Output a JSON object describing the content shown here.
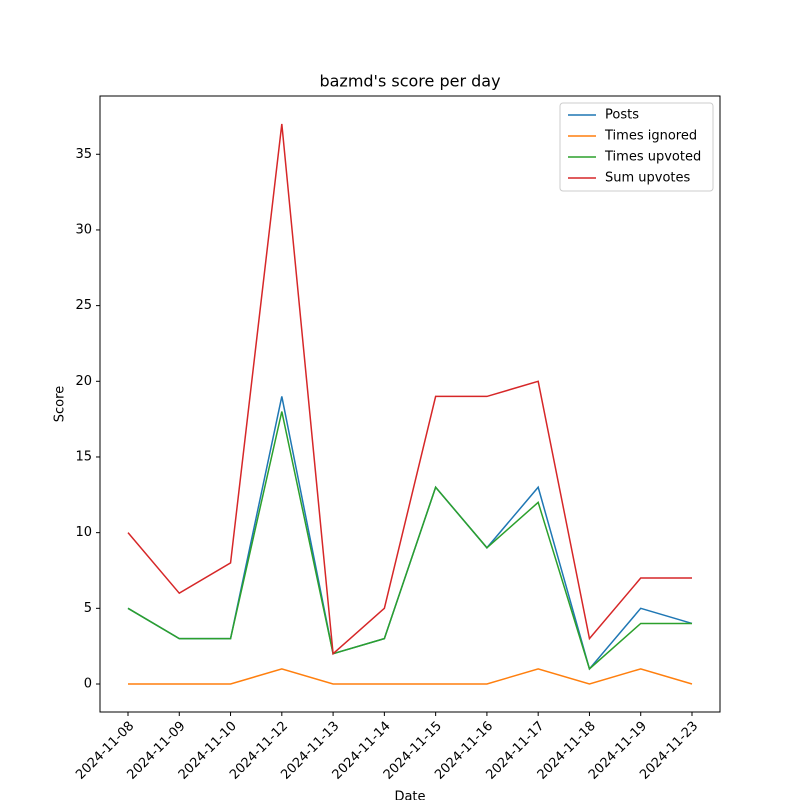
{
  "chart_data": {
    "type": "line",
    "title": "bazmd's score per day",
    "x_label": "Date",
    "y_label": "Score",
    "categories": [
      "2024-11-08",
      "2024-11-09",
      "2024-11-10",
      "2024-11-12",
      "2024-11-13",
      "2024-11-14",
      "2024-11-15",
      "2024-11-16",
      "2024-11-17",
      "2024-11-18",
      "2024-11-19",
      "2024-11-23"
    ],
    "series": [
      {
        "name": "Posts",
        "color": "#1f77b4",
        "values": [
          5,
          3,
          3,
          19,
          2,
          3,
          13,
          9,
          13,
          1,
          5,
          4
        ]
      },
      {
        "name": "Times ignored",
        "color": "#ff7f0e",
        "values": [
          0,
          0,
          0,
          1,
          0,
          0,
          0,
          0,
          1,
          0,
          1,
          0
        ]
      },
      {
        "name": "Times upvoted",
        "color": "#2ca02c",
        "values": [
          5,
          3,
          3,
          18,
          2,
          3,
          13,
          9,
          12,
          1,
          4,
          4
        ]
      },
      {
        "name": "Sum upvotes",
        "color": "#d62728",
        "values": [
          10,
          6,
          8,
          37,
          2,
          5,
          19,
          19,
          20,
          3,
          7,
          7
        ]
      }
    ],
    "ylim": [
      -1.85,
      38.85
    ],
    "yticks": [
      0,
      5,
      10,
      15,
      20,
      25,
      30,
      35
    ],
    "grid": false,
    "legend": "upper right"
  }
}
